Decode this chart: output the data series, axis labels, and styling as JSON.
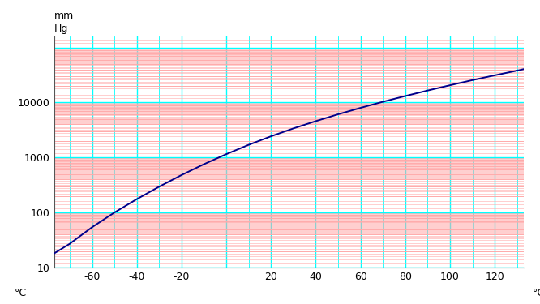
{
  "xlabel_left": "°C",
  "xlabel_right": "°C",
  "ylabel_top1": "mm",
  "ylabel_top2": "Hg",
  "x_ticks": [
    -60,
    -40,
    -20,
    20,
    40,
    60,
    80,
    100,
    120
  ],
  "x_min": -77,
  "x_max": 133,
  "y_log_min": 1.0,
  "y_log_max": 5.2,
  "background_color": "#ffffff",
  "cyan_color": "#00ffff",
  "red_color": "#ffaaaa",
  "curve_color": "#00008b",
  "curve_linewidth": 1.4,
  "curve_x": [
    -77,
    -70,
    -60,
    -50,
    -40,
    -30,
    -20,
    -10,
    0,
    10,
    20,
    30,
    40,
    50,
    60,
    70,
    80,
    90,
    100,
    110,
    120,
    130,
    133
  ],
  "curve_y": [
    18,
    27,
    54,
    100,
    175,
    295,
    480,
    755,
    1150,
    1700,
    2430,
    3380,
    4580,
    6100,
    7980,
    10300,
    13100,
    16500,
    20600,
    25500,
    31200,
    38000,
    40500
  ],
  "red_lines_per_decade": 9,
  "cyan_major_x_step": 20,
  "cyan_minor_x_step": 10
}
